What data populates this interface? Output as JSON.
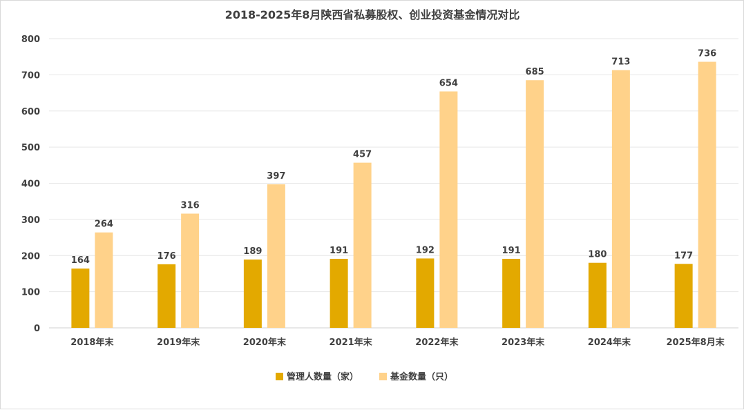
{
  "chart_data": {
    "type": "bar",
    "title": "2018-2025年8月陕西省私募股权、创业投资基金情况对比",
    "categories": [
      "2018年末",
      "2019年末",
      "2020年末",
      "2021年末",
      "2022年末",
      "2023年末",
      "2024年末",
      "2025年8月末"
    ],
    "series": [
      {
        "name": "管理人数量（家）",
        "values": [
          164,
          176,
          189,
          191,
          192,
          191,
          180,
          177
        ],
        "color": "#e3a900"
      },
      {
        "name": "基金数量（只）",
        "values": [
          264,
          316,
          397,
          457,
          654,
          685,
          713,
          736
        ],
        "color": "#ffd28a"
      }
    ],
    "ylim": [
      0,
      800
    ],
    "yticks": [
      0,
      100,
      200,
      300,
      400,
      500,
      600,
      700,
      800
    ],
    "grid": true,
    "legend": "bottom",
    "data_labels": true
  }
}
